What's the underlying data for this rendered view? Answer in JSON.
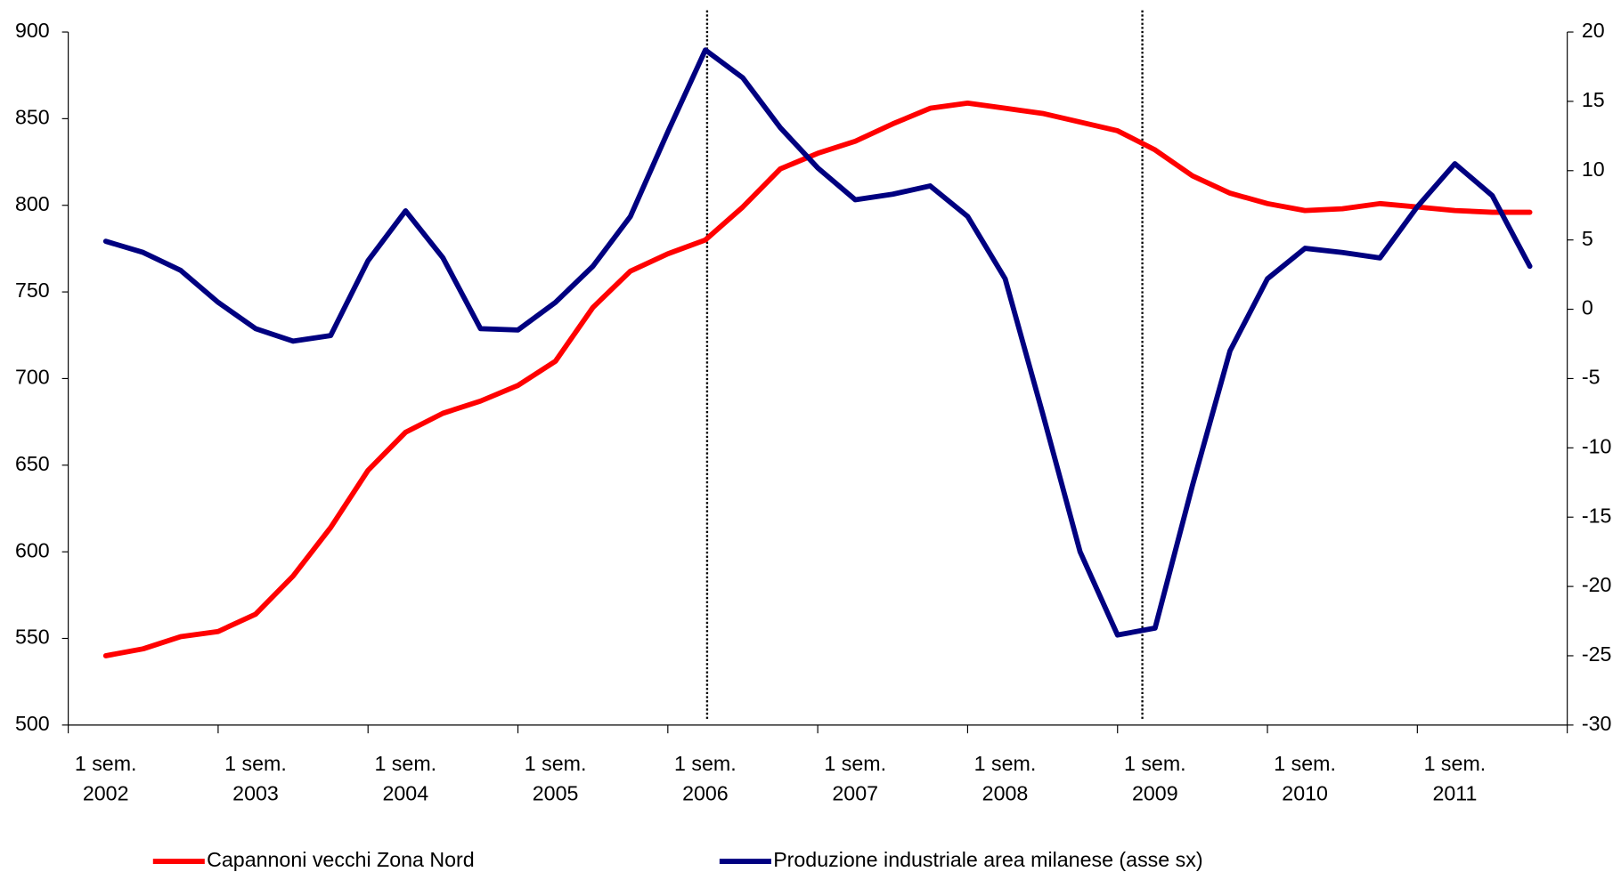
{
  "chart_data": {
    "type": "line",
    "categories": [
      "1 sem.\n2002",
      null,
      null,
      null,
      "1 sem.\n2003",
      null,
      null,
      null,
      "1 sem.\n2004",
      null,
      null,
      null,
      "1 sem.\n2005",
      null,
      null,
      null,
      "1 sem.\n2006",
      null,
      null,
      null,
      "1 sem.\n2007",
      null,
      null,
      null,
      "1 sem.\n2008",
      null,
      null,
      null,
      "1 sem.\n2009",
      null,
      null,
      null,
      "1 sem.\n2010",
      null,
      null,
      null,
      "1 sem.\n2011",
      null,
      null
    ],
    "series": [
      {
        "name": "Capannoni vecchi Zona Nord",
        "color": "#ff0000",
        "values": [
          540,
          544,
          551,
          554,
          564,
          586,
          614,
          647,
          669,
          680,
          687,
          696,
          710,
          741,
          762,
          772,
          780,
          799,
          821,
          830,
          837,
          847,
          856,
          859,
          856,
          853,
          848,
          843,
          832,
          817,
          807,
          801,
          797,
          798,
          801,
          799,
          797,
          796,
          796
        ]
      },
      {
        "name": "Produzione industriale area milanese (asse sx)",
        "color": "#000080",
        "axis": "y2",
        "values": [
          4.9,
          4.1,
          2.8,
          0.5,
          -1.4,
          -2.3,
          -1.9,
          3.5,
          7.1,
          3.7,
          -1.4,
          -1.5,
          0.5,
          3.1,
          6.7,
          12.8,
          18.7,
          16.7,
          13.1,
          10.2,
          7.9,
          8.3,
          8.9,
          6.7,
          2.2,
          -7.5,
          -17.5,
          -23.5,
          -23.0,
          -12.7,
          -3.0,
          2.2,
          4.4,
          4.1,
          3.7,
          7.4,
          10.5,
          8.2,
          3.1
        ]
      }
    ],
    "ylim": [
      500,
      900
    ],
    "yticks": [
      500,
      550,
      600,
      650,
      700,
      750,
      800,
      850,
      900
    ],
    "y2lim": [
      -30,
      20
    ],
    "y2ticks": [
      -30,
      -25,
      -20,
      -15,
      -10,
      -5,
      0,
      5,
      10,
      15,
      20
    ],
    "legend": "bottom"
  }
}
